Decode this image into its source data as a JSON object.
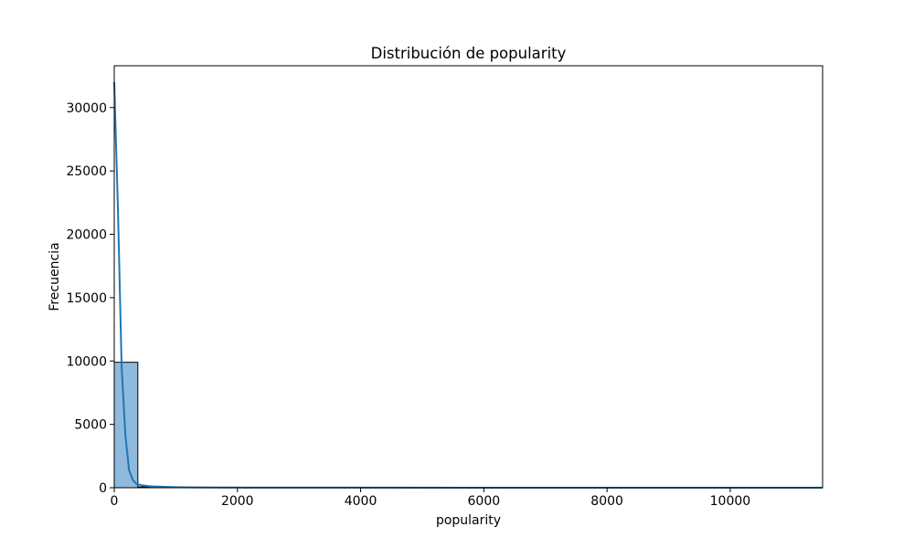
{
  "chart_data": {
    "type": "bar",
    "title": "Distribución de popularity",
    "xlabel": "popularity",
    "ylabel": "Frecuencia",
    "xlim": [
      0,
      11500
    ],
    "ylim": [
      0,
      33300
    ],
    "x_ticks": [
      0,
      2000,
      4000,
      6000,
      8000,
      10000
    ],
    "y_ticks": [
      0,
      5000,
      10000,
      15000,
      20000,
      25000,
      30000
    ],
    "grid": false,
    "legend": false,
    "colors": {
      "bar_fill": "#8fbadd",
      "bar_edge": "#000000",
      "kde_line": "#1f77b4",
      "axes": "#000000"
    },
    "histogram": {
      "bin_width": 383,
      "bins": [
        {
          "x0": 0,
          "x1": 383,
          "count": 9900
        },
        {
          "x0": 383,
          "x1": 766,
          "count": 70
        },
        {
          "x0": 766,
          "x1": 1149,
          "count": 15
        },
        {
          "x0": 1149,
          "x1": 1532,
          "count": 6
        },
        {
          "x0": 1532,
          "x1": 1915,
          "count": 3
        },
        {
          "x0": 1915,
          "x1": 2298,
          "count": 2
        },
        {
          "x0": 2298,
          "x1": 2681,
          "count": 1
        },
        {
          "x0": 2681,
          "x1": 3064,
          "count": 1
        },
        {
          "x0": 3064,
          "x1": 3447,
          "count": 0
        },
        {
          "x0": 3447,
          "x1": 3830,
          "count": 0
        },
        {
          "x0": 3830,
          "x1": 4213,
          "count": 0
        },
        {
          "x0": 4213,
          "x1": 4596,
          "count": 0
        },
        {
          "x0": 4596,
          "x1": 4979,
          "count": 0
        },
        {
          "x0": 4979,
          "x1": 5362,
          "count": 0
        },
        {
          "x0": 5362,
          "x1": 5745,
          "count": 0
        },
        {
          "x0": 5745,
          "x1": 6128,
          "count": 0
        },
        {
          "x0": 6128,
          "x1": 6511,
          "count": 0
        },
        {
          "x0": 6511,
          "x1": 6894,
          "count": 0
        },
        {
          "x0": 6894,
          "x1": 7277,
          "count": 0
        },
        {
          "x0": 7277,
          "x1": 7660,
          "count": 0
        },
        {
          "x0": 7660,
          "x1": 8043,
          "count": 0
        },
        {
          "x0": 8043,
          "x1": 8426,
          "count": 0
        },
        {
          "x0": 8426,
          "x1": 8809,
          "count": 0
        },
        {
          "x0": 8809,
          "x1": 9192,
          "count": 0
        },
        {
          "x0": 9192,
          "x1": 9575,
          "count": 0
        },
        {
          "x0": 9575,
          "x1": 9958,
          "count": 0
        },
        {
          "x0": 9958,
          "x1": 10341,
          "count": 0
        },
        {
          "x0": 10341,
          "x1": 10724,
          "count": 0
        },
        {
          "x0": 10724,
          "x1": 11107,
          "count": 0
        },
        {
          "x0": 11107,
          "x1": 11490,
          "count": 1
        }
      ]
    },
    "kde_curve": {
      "x": [
        0,
        60,
        120,
        180,
        240,
        300,
        360,
        450,
        600,
        800,
        1000,
        1300,
        1700,
        2200,
        3000,
        4000,
        6000,
        8000,
        10000,
        11500
      ],
      "y": [
        32000,
        22000,
        9500,
        4200,
        1400,
        620,
        300,
        190,
        110,
        70,
        45,
        28,
        18,
        12,
        8,
        5,
        3,
        2,
        1,
        0
      ]
    }
  }
}
